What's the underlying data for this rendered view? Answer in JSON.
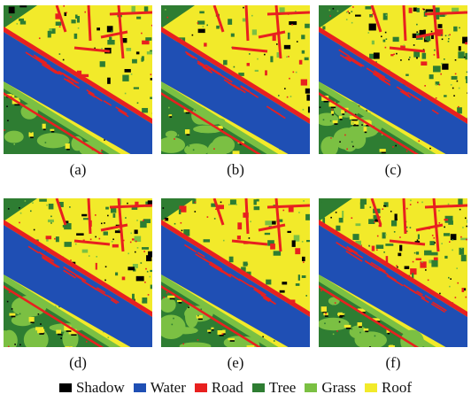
{
  "panels": [
    {
      "label": "(a)",
      "variant": 0
    },
    {
      "label": "(b)",
      "variant": 1
    },
    {
      "label": "(c)",
      "variant": 2
    },
    {
      "label": "(d)",
      "variant": 3
    },
    {
      "label": "(e)",
      "variant": 4
    },
    {
      "label": "(f)",
      "variant": 5
    }
  ],
  "legend": [
    {
      "label": "Shadow",
      "color": "#000000"
    },
    {
      "label": "Water",
      "color": "#1f4fb4"
    },
    {
      "label": "Road",
      "color": "#e8201f"
    },
    {
      "label": "Tree",
      "color": "#2e7d32"
    },
    {
      "label": "Grass",
      "color": "#7bc043"
    },
    {
      "label": "Roof",
      "color": "#f2ea2a"
    }
  ]
}
